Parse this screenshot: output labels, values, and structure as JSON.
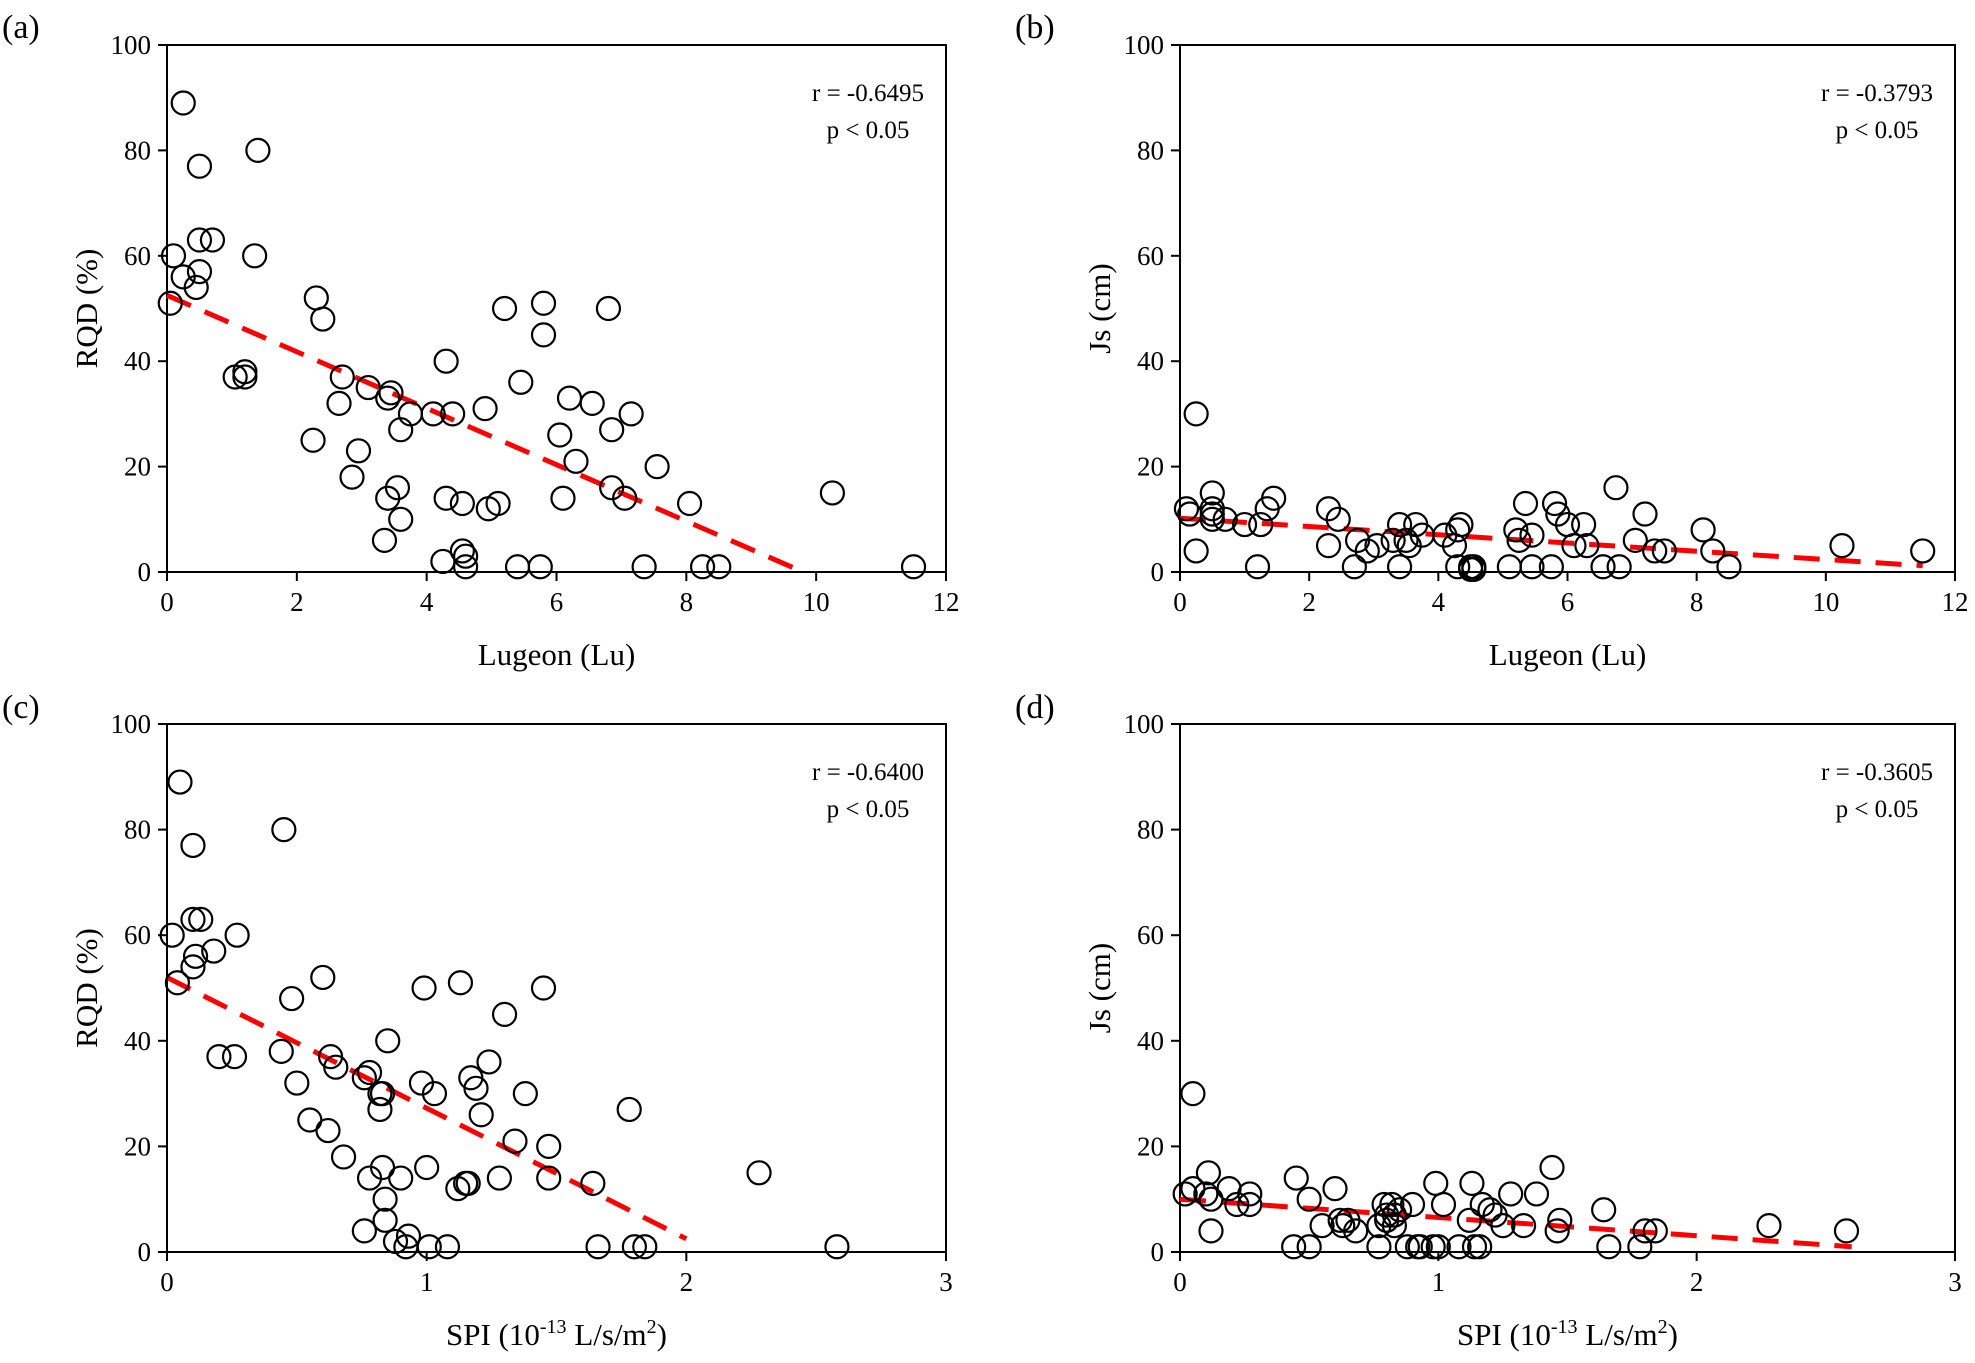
{
  "figure": {
    "description_free": true
  },
  "chart_data": [
    {
      "type": "scatter",
      "panel_label": "(a)",
      "xlabel": "Lugeon (Lu)",
      "ylabel": "RQD (%)",
      "xlim": [
        0,
        12
      ],
      "ylim": [
        0,
        100
      ],
      "xticks": [
        "0",
        "2",
        "4",
        "6",
        "8",
        "10",
        "12"
      ],
      "yticks": [
        "0",
        "20",
        "40",
        "60",
        "80",
        "100"
      ],
      "stat_r": "r = -0.6495",
      "stat_p": "p < 0.05",
      "trend": {
        "x": [
          0,
          9.8
        ],
        "y": [
          52.5,
          0
        ]
      },
      "points": [
        [
          0.1,
          60
        ],
        [
          0.05,
          51
        ],
        [
          0.25,
          89
        ],
        [
          0.25,
          56
        ],
        [
          0.45,
          54
        ],
        [
          0.5,
          57
        ],
        [
          0.5,
          63
        ],
        [
          0.5,
          77
        ],
        [
          0.7,
          63
        ],
        [
          1.05,
          37
        ],
        [
          1.2,
          38
        ],
        [
          1.2,
          37
        ],
        [
          1.35,
          60
        ],
        [
          1.4,
          80
        ],
        [
          2.25,
          25
        ],
        [
          2.3,
          52
        ],
        [
          2.4,
          48
        ],
        [
          2.65,
          32
        ],
        [
          2.7,
          37
        ],
        [
          2.85,
          18
        ],
        [
          2.95,
          23
        ],
        [
          3.1,
          35
        ],
        [
          3.35,
          6
        ],
        [
          3.4,
          14
        ],
        [
          3.4,
          33
        ],
        [
          3.45,
          34
        ],
        [
          3.55,
          16
        ],
        [
          3.6,
          27
        ],
        [
          3.6,
          10
        ],
        [
          3.75,
          30
        ],
        [
          4.1,
          30
        ],
        [
          4.25,
          2
        ],
        [
          4.3,
          40
        ],
        [
          4.3,
          14
        ],
        [
          4.4,
          30
        ],
        [
          4.55,
          4
        ],
        [
          4.55,
          13
        ],
        [
          4.6,
          1
        ],
        [
          4.6,
          3
        ],
        [
          4.9,
          31
        ],
        [
          4.95,
          12
        ],
        [
          5.1,
          13
        ],
        [
          5.2,
          50
        ],
        [
          5.4,
          1
        ],
        [
          5.45,
          36
        ],
        [
          5.75,
          1
        ],
        [
          5.8,
          51
        ],
        [
          5.8,
          45
        ],
        [
          6.05,
          26
        ],
        [
          6.1,
          14
        ],
        [
          6.2,
          33
        ],
        [
          6.3,
          21
        ],
        [
          6.55,
          32
        ],
        [
          6.8,
          50
        ],
        [
          6.85,
          27
        ],
        [
          6.85,
          16
        ],
        [
          7.05,
          14
        ],
        [
          7.15,
          30
        ],
        [
          7.35,
          1
        ],
        [
          7.55,
          20
        ],
        [
          8.05,
          13
        ],
        [
          8.25,
          1
        ],
        [
          8.5,
          1
        ],
        [
          10.25,
          15
        ],
        [
          11.5,
          1
        ]
      ]
    },
    {
      "type": "scatter",
      "panel_label": "(b)",
      "xlabel": "Lugeon (Lu)",
      "ylabel": "Js (cm)",
      "xlim": [
        0,
        12
      ],
      "ylim": [
        0,
        100
      ],
      "xticks": [
        "0",
        "2",
        "4",
        "6",
        "8",
        "10",
        "12"
      ],
      "yticks": [
        "0",
        "20",
        "40",
        "60",
        "80",
        "100"
      ],
      "stat_r": "r = -0.3793",
      "stat_p": "p < 0.05",
      "trend": {
        "x": [
          0,
          11.5
        ],
        "y": [
          10.2,
          1.2
        ]
      },
      "points": [
        [
          0.1,
          12
        ],
        [
          0.15,
          11
        ],
        [
          0.25,
          4
        ],
        [
          0.25,
          30
        ],
        [
          0.5,
          15
        ],
        [
          0.5,
          12
        ],
        [
          0.5,
          11
        ],
        [
          0.5,
          10
        ],
        [
          0.7,
          10
        ],
        [
          1.0,
          9
        ],
        [
          1.2,
          1
        ],
        [
          1.25,
          9
        ],
        [
          1.35,
          12
        ],
        [
          1.45,
          14
        ],
        [
          2.3,
          5
        ],
        [
          2.3,
          12
        ],
        [
          2.45,
          10
        ],
        [
          2.7,
          1
        ],
        [
          2.75,
          6
        ],
        [
          2.9,
          4
        ],
        [
          3.05,
          5
        ],
        [
          3.3,
          6
        ],
        [
          3.4,
          9
        ],
        [
          3.4,
          1
        ],
        [
          3.5,
          6
        ],
        [
          3.55,
          5
        ],
        [
          3.65,
          9
        ],
        [
          3.75,
          7
        ],
        [
          4.1,
          7
        ],
        [
          4.25,
          5
        ],
        [
          4.3,
          8
        ],
        [
          4.3,
          1
        ],
        [
          4.35,
          9
        ],
        [
          4.5,
          1
        ],
        [
          4.5,
          0.5
        ],
        [
          4.55,
          0.5
        ],
        [
          4.55,
          1
        ],
        [
          5.1,
          1
        ],
        [
          5.2,
          8
        ],
        [
          5.25,
          6
        ],
        [
          5.35,
          13
        ],
        [
          5.45,
          7
        ],
        [
          5.45,
          1
        ],
        [
          5.75,
          1
        ],
        [
          5.8,
          13
        ],
        [
          5.85,
          11
        ],
        [
          6.0,
          9
        ],
        [
          6.1,
          5
        ],
        [
          6.25,
          9
        ],
        [
          6.3,
          5
        ],
        [
          6.55,
          1
        ],
        [
          6.75,
          16
        ],
        [
          6.8,
          1
        ],
        [
          7.05,
          6
        ],
        [
          7.2,
          11
        ],
        [
          7.35,
          4
        ],
        [
          7.5,
          4
        ],
        [
          8.1,
          8
        ],
        [
          8.25,
          4
        ],
        [
          8.5,
          1
        ],
        [
          10.25,
          5
        ],
        [
          11.5,
          4
        ]
      ]
    },
    {
      "type": "scatter",
      "panel_label": "(c)",
      "xlabel": "SPI (10",
      "xlabel_sup": "-13",
      "xlabel_mid": " L/s/m",
      "xlabel_sup2": "2",
      "xlabel_end": ")",
      "ylabel": "RQD (%)",
      "xlim": [
        0,
        3
      ],
      "ylim": [
        0,
        100
      ],
      "xticks": [
        "0",
        "1",
        "2",
        "3"
      ],
      "yticks": [
        "0",
        "20",
        "40",
        "60",
        "80",
        "100"
      ],
      "stat_r": "r = -0.6400",
      "stat_p": "p < 0.05",
      "trend": {
        "x": [
          0,
          2.0
        ],
        "y": [
          52,
          2.5
        ]
      },
      "points": [
        [
          0.02,
          60
        ],
        [
          0.04,
          51
        ],
        [
          0.05,
          89
        ],
        [
          0.1,
          54
        ],
        [
          0.1,
          63
        ],
        [
          0.1,
          77
        ],
        [
          0.11,
          56
        ],
        [
          0.13,
          63
        ],
        [
          0.18,
          57
        ],
        [
          0.2,
          37
        ],
        [
          0.26,
          37
        ],
        [
          0.27,
          60
        ],
        [
          0.44,
          38
        ],
        [
          0.45,
          80
        ],
        [
          0.48,
          48
        ],
        [
          0.5,
          32
        ],
        [
          0.55,
          25
        ],
        [
          0.6,
          52
        ],
        [
          0.62,
          23
        ],
        [
          0.63,
          37
        ],
        [
          0.65,
          35
        ],
        [
          0.68,
          18
        ],
        [
          0.76,
          4
        ],
        [
          0.76,
          33
        ],
        [
          0.78,
          34
        ],
        [
          0.78,
          14
        ],
        [
          0.82,
          27
        ],
        [
          0.82,
          30
        ],
        [
          0.83,
          16
        ],
        [
          0.83,
          30
        ],
        [
          0.84,
          6
        ],
        [
          0.84,
          10
        ],
        [
          0.85,
          40
        ],
        [
          0.88,
          2
        ],
        [
          0.9,
          14
        ],
        [
          0.92,
          1
        ],
        [
          0.93,
          3
        ],
        [
          0.98,
          32
        ],
        [
          0.99,
          50
        ],
        [
          1.0,
          16
        ],
        [
          1.01,
          1
        ],
        [
          1.03,
          30
        ],
        [
          1.08,
          1
        ],
        [
          1.12,
          12
        ],
        [
          1.13,
          51
        ],
        [
          1.15,
          13
        ],
        [
          1.16,
          13
        ],
        [
          1.17,
          33
        ],
        [
          1.19,
          31
        ],
        [
          1.21,
          26
        ],
        [
          1.24,
          36
        ],
        [
          1.28,
          14
        ],
        [
          1.3,
          45
        ],
        [
          1.34,
          21
        ],
        [
          1.38,
          30
        ],
        [
          1.45,
          50
        ],
        [
          1.47,
          14
        ],
        [
          1.47,
          20
        ],
        [
          1.64,
          13
        ],
        [
          1.66,
          1
        ],
        [
          1.78,
          27
        ],
        [
          1.8,
          1
        ],
        [
          1.84,
          1
        ],
        [
          2.28,
          15
        ],
        [
          2.58,
          1
        ]
      ]
    },
    {
      "type": "scatter",
      "panel_label": "(d)",
      "xlabel": "SPI (10",
      "xlabel_sup": "-13",
      "xlabel_mid": " L/s/m",
      "xlabel_sup2": "2",
      "xlabel_end": ")",
      "ylabel": "Js (cm)",
      "xlim": [
        0,
        3
      ],
      "ylim": [
        0,
        100
      ],
      "xticks": [
        "0",
        "1",
        "2",
        "3"
      ],
      "yticks": [
        "0",
        "20",
        "40",
        "60",
        "80",
        "100"
      ],
      "stat_r": "r = -0.3605",
      "stat_p": "p < 0.05",
      "trend": {
        "x": [
          0,
          2.6
        ],
        "y": [
          10,
          1
        ]
      },
      "points": [
        [
          0.02,
          11
        ],
        [
          0.05,
          30
        ],
        [
          0.05,
          12
        ],
        [
          0.1,
          11
        ],
        [
          0.11,
          15
        ],
        [
          0.12,
          4
        ],
        [
          0.12,
          10
        ],
        [
          0.19,
          12
        ],
        [
          0.22,
          9
        ],
        [
          0.27,
          11
        ],
        [
          0.27,
          9
        ],
        [
          0.44,
          1
        ],
        [
          0.45,
          14
        ],
        [
          0.5,
          1
        ],
        [
          0.5,
          10
        ],
        [
          0.55,
          5
        ],
        [
          0.6,
          12
        ],
        [
          0.62,
          6
        ],
        [
          0.63,
          5
        ],
        [
          0.65,
          6
        ],
        [
          0.68,
          4
        ],
        [
          0.77,
          1
        ],
        [
          0.77,
          5
        ],
        [
          0.79,
          9
        ],
        [
          0.8,
          6
        ],
        [
          0.8,
          7
        ],
        [
          0.82,
          9
        ],
        [
          0.83,
          5
        ],
        [
          0.83,
          7
        ],
        [
          0.85,
          8
        ],
        [
          0.88,
          1
        ],
        [
          0.9,
          9
        ],
        [
          0.92,
          1
        ],
        [
          0.93,
          1
        ],
        [
          0.98,
          1
        ],
        [
          0.99,
          13
        ],
        [
          1.0,
          1
        ],
        [
          1.02,
          9
        ],
        [
          1.08,
          1
        ],
        [
          1.12,
          6
        ],
        [
          1.13,
          13
        ],
        [
          1.14,
          1
        ],
        [
          1.16,
          1
        ],
        [
          1.17,
          9
        ],
        [
          1.2,
          8
        ],
        [
          1.22,
          7
        ],
        [
          1.25,
          5
        ],
        [
          1.28,
          11
        ],
        [
          1.33,
          5
        ],
        [
          1.38,
          11
        ],
        [
          1.44,
          16
        ],
        [
          1.46,
          4
        ],
        [
          1.47,
          6
        ],
        [
          1.64,
          8
        ],
        [
          1.66,
          1
        ],
        [
          1.78,
          1
        ],
        [
          1.8,
          4
        ],
        [
          1.84,
          4
        ],
        [
          2.28,
          5
        ],
        [
          2.58,
          4
        ]
      ]
    }
  ]
}
